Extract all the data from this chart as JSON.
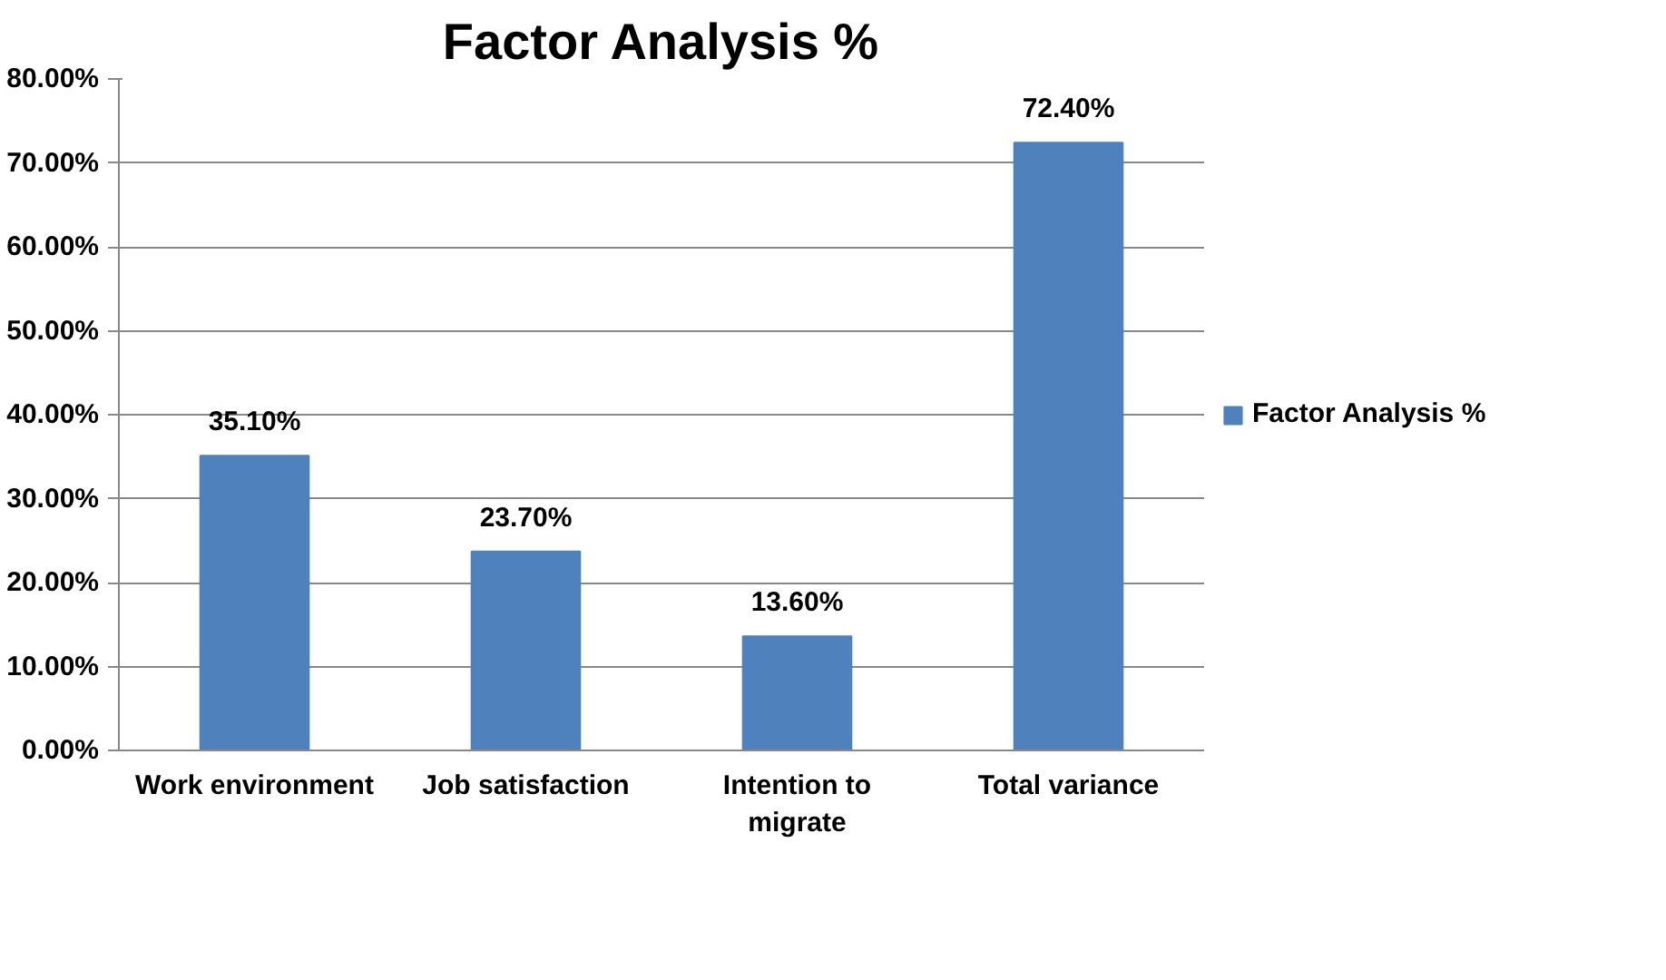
{
  "chart_data": {
    "type": "bar",
    "title": "Factor Analysis %",
    "categories": [
      "Work environment",
      "Job satisfaction",
      "Intention to migrate",
      "Total variance"
    ],
    "series": [
      {
        "name": "Factor Analysis %",
        "color": "#4f81bd",
        "values": [
          35.1,
          23.7,
          13.6,
          72.4
        ],
        "value_labels": [
          "35.10%",
          "23.70%",
          "13.60%",
          "72.40%"
        ]
      }
    ],
    "ylim": [
      0,
      80
    ],
    "yticks": [
      {
        "value": 0,
        "label": "0.00%"
      },
      {
        "value": 10,
        "label": "10.00%"
      },
      {
        "value": 20,
        "label": "20.00%"
      },
      {
        "value": 30,
        "label": "30.00%"
      },
      {
        "value": 40,
        "label": "40.00%"
      },
      {
        "value": 50,
        "label": "50.00%"
      },
      {
        "value": 60,
        "label": "60.00%"
      },
      {
        "value": 70,
        "label": "70.00%"
      },
      {
        "value": 80,
        "label": "80.00%"
      }
    ],
    "grid": "y",
    "legend": "right"
  }
}
